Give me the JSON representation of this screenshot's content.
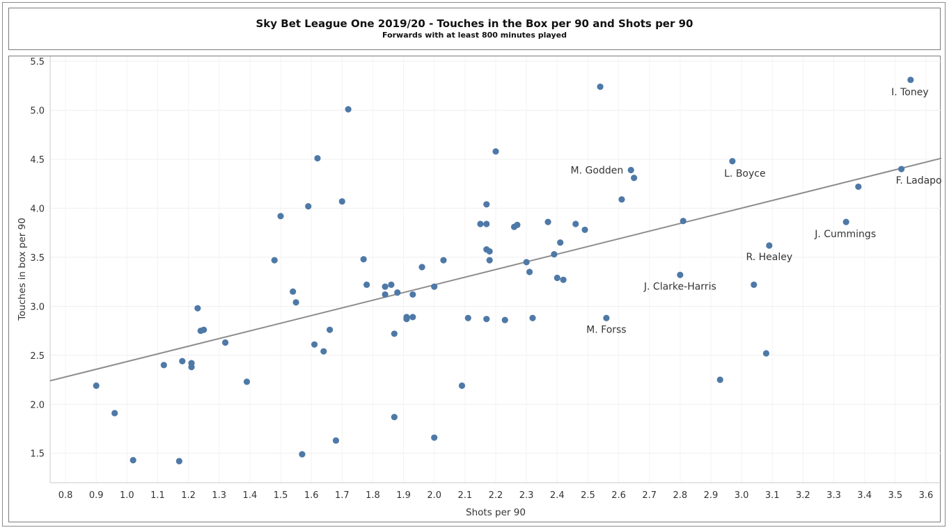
{
  "chart_data": {
    "type": "scatter",
    "title": "Sky Bet League One 2019/20 - Touches in the Box per 90 and Shots per 90",
    "subtitle": "Forwards with at least 800 minutes played",
    "xlabel": "Shots per 90",
    "ylabel": "Touches in box per 90",
    "xlim": [
      0.75,
      3.65
    ],
    "ylim": [
      1.2,
      5.55
    ],
    "xticks": [
      "0.8",
      "0.9",
      "1.0",
      "1.1",
      "1.2",
      "1.3",
      "1.4",
      "1.5",
      "1.6",
      "1.7",
      "1.8",
      "1.9",
      "2.0",
      "2.1",
      "2.2",
      "2.3",
      "2.4",
      "2.5",
      "2.6",
      "2.7",
      "2.8",
      "2.9",
      "3.0",
      "3.1",
      "3.2",
      "3.3",
      "3.4",
      "3.5",
      "3.6"
    ],
    "yticks": [
      "1.5",
      "2.0",
      "2.5",
      "3.0",
      "3.5",
      "4.0",
      "4.5",
      "5.0",
      "5.5"
    ],
    "grid": true,
    "point_color": "#4e79a7",
    "trendline_color": "#8c8c8c",
    "trendline": [
      [
        0.75,
        2.24
      ],
      [
        3.65,
        4.51
      ]
    ],
    "points": [
      {
        "x": 0.9,
        "y": 2.19,
        "label": ""
      },
      {
        "x": 0.96,
        "y": 1.91,
        "label": ""
      },
      {
        "x": 1.02,
        "y": 1.43,
        "label": ""
      },
      {
        "x": 1.12,
        "y": 2.4,
        "label": ""
      },
      {
        "x": 1.17,
        "y": 1.42,
        "label": ""
      },
      {
        "x": 1.18,
        "y": 2.44,
        "label": ""
      },
      {
        "x": 1.21,
        "y": 2.42,
        "label": ""
      },
      {
        "x": 1.21,
        "y": 2.38,
        "label": ""
      },
      {
        "x": 1.23,
        "y": 2.98,
        "label": ""
      },
      {
        "x": 1.24,
        "y": 2.75,
        "label": ""
      },
      {
        "x": 1.25,
        "y": 2.76,
        "label": ""
      },
      {
        "x": 1.32,
        "y": 2.63,
        "label": ""
      },
      {
        "x": 1.39,
        "y": 2.23,
        "label": ""
      },
      {
        "x": 1.48,
        "y": 3.47,
        "label": ""
      },
      {
        "x": 1.5,
        "y": 3.92,
        "label": ""
      },
      {
        "x": 1.54,
        "y": 3.15,
        "label": ""
      },
      {
        "x": 1.55,
        "y": 3.04,
        "label": ""
      },
      {
        "x": 1.57,
        "y": 1.49,
        "label": ""
      },
      {
        "x": 1.59,
        "y": 4.02,
        "label": ""
      },
      {
        "x": 1.61,
        "y": 2.61,
        "label": ""
      },
      {
        "x": 1.62,
        "y": 4.51,
        "label": ""
      },
      {
        "x": 1.64,
        "y": 2.54,
        "label": ""
      },
      {
        "x": 1.66,
        "y": 2.76,
        "label": ""
      },
      {
        "x": 1.68,
        "y": 1.63,
        "label": ""
      },
      {
        "x": 1.7,
        "y": 4.07,
        "label": ""
      },
      {
        "x": 1.72,
        "y": 5.01,
        "label": ""
      },
      {
        "x": 1.77,
        "y": 3.48,
        "label": ""
      },
      {
        "x": 1.78,
        "y": 3.22,
        "label": ""
      },
      {
        "x": 1.84,
        "y": 3.2,
        "label": ""
      },
      {
        "x": 1.84,
        "y": 3.12,
        "label": ""
      },
      {
        "x": 1.86,
        "y": 3.22,
        "label": ""
      },
      {
        "x": 1.87,
        "y": 2.72,
        "label": ""
      },
      {
        "x": 1.87,
        "y": 1.87,
        "label": ""
      },
      {
        "x": 1.88,
        "y": 3.14,
        "label": ""
      },
      {
        "x": 1.91,
        "y": 2.89,
        "label": ""
      },
      {
        "x": 1.91,
        "y": 2.87,
        "label": ""
      },
      {
        "x": 1.93,
        "y": 3.12,
        "label": ""
      },
      {
        "x": 1.93,
        "y": 2.89,
        "label": ""
      },
      {
        "x": 1.96,
        "y": 3.4,
        "label": ""
      },
      {
        "x": 2.0,
        "y": 3.2,
        "label": ""
      },
      {
        "x": 2.0,
        "y": 1.66,
        "label": ""
      },
      {
        "x": 2.03,
        "y": 3.47,
        "label": ""
      },
      {
        "x": 2.09,
        "y": 2.19,
        "label": ""
      },
      {
        "x": 2.11,
        "y": 2.88,
        "label": ""
      },
      {
        "x": 2.15,
        "y": 3.84,
        "label": ""
      },
      {
        "x": 2.17,
        "y": 4.04,
        "label": ""
      },
      {
        "x": 2.17,
        "y": 3.84,
        "label": ""
      },
      {
        "x": 2.17,
        "y": 3.58,
        "label": ""
      },
      {
        "x": 2.17,
        "y": 2.87,
        "label": ""
      },
      {
        "x": 2.18,
        "y": 3.56,
        "label": ""
      },
      {
        "x": 2.18,
        "y": 3.47,
        "label": ""
      },
      {
        "x": 2.2,
        "y": 4.58,
        "label": ""
      },
      {
        "x": 2.23,
        "y": 2.86,
        "label": ""
      },
      {
        "x": 2.26,
        "y": 3.81,
        "label": ""
      },
      {
        "x": 2.27,
        "y": 3.83,
        "label": ""
      },
      {
        "x": 2.3,
        "y": 3.45,
        "label": ""
      },
      {
        "x": 2.31,
        "y": 3.35,
        "label": ""
      },
      {
        "x": 2.32,
        "y": 2.88,
        "label": ""
      },
      {
        "x": 2.37,
        "y": 3.86,
        "label": ""
      },
      {
        "x": 2.39,
        "y": 3.53,
        "label": ""
      },
      {
        "x": 2.4,
        "y": 3.29,
        "label": ""
      },
      {
        "x": 2.41,
        "y": 3.65,
        "label": ""
      },
      {
        "x": 2.42,
        "y": 3.27,
        "label": ""
      },
      {
        "x": 2.46,
        "y": 3.84,
        "label": ""
      },
      {
        "x": 2.49,
        "y": 3.78,
        "label": ""
      },
      {
        "x": 2.54,
        "y": 5.24,
        "label": ""
      },
      {
        "x": 2.56,
        "y": 2.88,
        "label": "M. Forss"
      },
      {
        "x": 2.61,
        "y": 4.09,
        "label": ""
      },
      {
        "x": 2.64,
        "y": 4.39,
        "label": "M. Godden"
      },
      {
        "x": 2.65,
        "y": 4.31,
        "label": ""
      },
      {
        "x": 2.8,
        "y": 3.32,
        "label": "J. Clarke-Harris"
      },
      {
        "x": 2.81,
        "y": 3.87,
        "label": ""
      },
      {
        "x": 2.93,
        "y": 2.25,
        "label": ""
      },
      {
        "x": 2.97,
        "y": 4.48,
        "label": "L. Boyce"
      },
      {
        "x": 3.04,
        "y": 3.22,
        "label": ""
      },
      {
        "x": 3.08,
        "y": 2.52,
        "label": ""
      },
      {
        "x": 3.09,
        "y": 3.62,
        "label": "R. Healey"
      },
      {
        "x": 3.34,
        "y": 3.86,
        "label": "J. Cummings"
      },
      {
        "x": 3.38,
        "y": 4.22,
        "label": ""
      },
      {
        "x": 3.52,
        "y": 4.4,
        "label": "F. Ladapo"
      },
      {
        "x": 3.55,
        "y": 5.31,
        "label": "I. Toney"
      }
    ]
  }
}
